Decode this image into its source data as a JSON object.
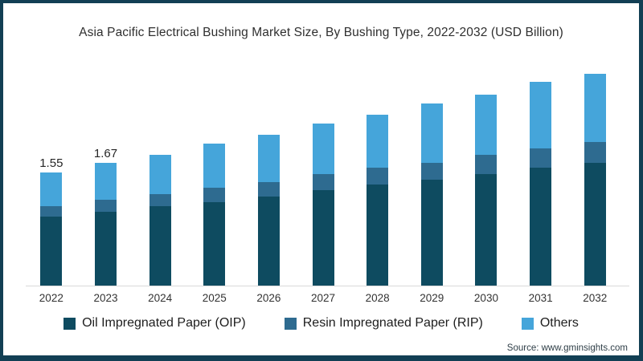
{
  "frame": {
    "border_color": "#123f54",
    "background": "#ffffff"
  },
  "title": "Asia Pacific Electrical Bushing Market Size, By Bushing Type, 2022-2032 (USD Billion)",
  "source": "Source: www.gminsights.com",
  "legend": [
    {
      "label": "Oil Impregnated Paper (OIP)",
      "color": "#0e4b60"
    },
    {
      "label": "Resin Impregnated Paper (RIP)",
      "color": "#2e6b90"
    },
    {
      "label": "Others",
      "color": "#45a5da"
    }
  ],
  "chart_data": {
    "type": "bar",
    "stacked": true,
    "title": "Asia Pacific Electrical Bushing Market Size, By Bushing Type, 2022-2032 (USD Billion)",
    "xlabel": "",
    "ylabel": "USD Billion",
    "ylim": [
      0,
      3.2
    ],
    "grid": false,
    "legend_position": "bottom",
    "categories": [
      "2022",
      "2023",
      "2024",
      "2025",
      "2026",
      "2027",
      "2028",
      "2029",
      "2030",
      "2031",
      "2032"
    ],
    "series": [
      {
        "name": "Oil Impregnated Paper (OIP)",
        "color": "#0e4b60",
        "values": [
          0.95,
          1.01,
          1.09,
          1.14,
          1.22,
          1.31,
          1.39,
          1.45,
          1.53,
          1.61,
          1.68
        ]
      },
      {
        "name": "Resin Impregnated Paper (RIP)",
        "color": "#2e6b90",
        "values": [
          0.14,
          0.16,
          0.17,
          0.2,
          0.2,
          0.22,
          0.23,
          0.23,
          0.26,
          0.26,
          0.29
        ]
      },
      {
        "name": "Others",
        "color": "#45a5da",
        "values": [
          0.46,
          0.5,
          0.54,
          0.6,
          0.65,
          0.69,
          0.72,
          0.81,
          0.82,
          0.91,
          0.93
        ]
      }
    ],
    "totals": [
      1.55,
      1.67,
      1.8,
      1.94,
      2.07,
      2.22,
      2.34,
      2.49,
      2.61,
      2.78,
      2.9
    ],
    "total_labels": [
      "1.55",
      "1.67",
      "",
      "",
      "",
      "",
      "",
      "",
      "",
      "",
      ""
    ]
  }
}
